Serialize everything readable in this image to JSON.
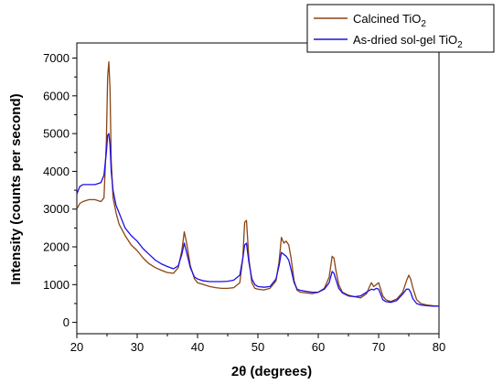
{
  "chart_data": {
    "type": "line",
    "xlabel": "2θ (degrees)",
    "ylabel": "Intensity (counts per second)",
    "xlim": [
      20,
      80
    ],
    "ylim": [
      -300,
      7400
    ],
    "xticks": [
      20,
      30,
      40,
      50,
      60,
      70,
      80
    ],
    "yticks": [
      0,
      1000,
      2000,
      3000,
      4000,
      5000,
      6000,
      7000
    ],
    "grid": false,
    "legend_position": "top-right",
    "series": [
      {
        "name": "Calcined TiO",
        "name_sub": "2",
        "color": "#8B4513",
        "x": [
          20,
          20.5,
          21,
          22,
          23,
          24,
          24.5,
          24.9,
          25.1,
          25.3,
          25.5,
          25.7,
          26,
          26.5,
          27,
          28,
          29,
          30,
          31,
          32,
          33,
          34,
          35,
          36,
          36.8,
          37.4,
          37.8,
          38.2,
          38.8,
          39.5,
          40,
          41,
          42,
          43,
          44,
          45,
          46,
          47,
          47.5,
          47.8,
          48.1,
          48.5,
          49,
          49.5,
          50,
          51,
          52,
          53,
          53.5,
          53.9,
          54.3,
          54.7,
          55.1,
          55.5,
          56,
          56.5,
          57,
          58,
          59,
          60,
          61,
          61.8,
          62.3,
          62.6,
          62.9,
          63.4,
          64,
          65,
          66,
          67,
          68,
          68.5,
          68.8,
          69.2,
          69.6,
          70,
          70.3,
          70.7,
          71.2,
          72,
          73,
          74,
          74.6,
          75,
          75.3,
          75.7,
          76.3,
          77,
          78,
          79,
          80
        ],
        "y": [
          3000,
          3150,
          3200,
          3250,
          3250,
          3200,
          3300,
          4800,
          6500,
          6900,
          6200,
          4300,
          3300,
          2900,
          2600,
          2300,
          2050,
          1900,
          1700,
          1550,
          1450,
          1380,
          1320,
          1300,
          1450,
          1900,
          2400,
          2100,
          1500,
          1150,
          1050,
          1000,
          950,
          920,
          900,
          900,
          920,
          1050,
          1700,
          2650,
          2700,
          1700,
          1050,
          900,
          880,
          860,
          900,
          1100,
          1600,
          2250,
          2100,
          2150,
          2050,
          1700,
          1100,
          850,
          800,
          780,
          760,
          800,
          900,
          1200,
          1750,
          1700,
          1400,
          1000,
          800,
          720,
          680,
          650,
          760,
          950,
          1050,
          950,
          1000,
          1050,
          900,
          700,
          600,
          550,
          620,
          800,
          1100,
          1250,
          1150,
          900,
          600,
          500,
          460,
          440,
          430
        ]
      },
      {
        "name": "As-dried sol-gel TiO",
        "name_sub": "2",
        "color": "#1E10E6",
        "x": [
          20,
          20.5,
          21,
          22,
          23,
          24,
          24.5,
          24.9,
          25.1,
          25.3,
          25.5,
          25.7,
          26,
          26.5,
          27,
          28,
          29,
          30,
          31,
          32,
          33,
          34,
          35,
          36,
          36.8,
          37.4,
          37.8,
          38.2,
          38.8,
          39.5,
          40,
          41,
          42,
          43,
          44,
          45,
          46,
          47,
          47.5,
          47.8,
          48.1,
          48.5,
          49,
          49.5,
          50,
          51,
          52,
          53,
          53.5,
          53.9,
          54.3,
          54.7,
          55.1,
          55.5,
          56,
          56.5,
          57,
          58,
          59,
          60,
          61,
          61.8,
          62.3,
          62.6,
          62.9,
          63.4,
          64,
          65,
          66,
          67,
          68,
          68.5,
          68.8,
          69.2,
          69.6,
          70,
          70.3,
          70.7,
          71.2,
          72,
          73,
          74,
          74.6,
          75,
          75.3,
          75.7,
          76.3,
          77,
          78,
          79,
          80
        ],
        "y": [
          3400,
          3600,
          3650,
          3650,
          3650,
          3700,
          3900,
          4500,
          4950,
          5000,
          4700,
          4000,
          3500,
          3100,
          2900,
          2500,
          2300,
          2150,
          1950,
          1800,
          1650,
          1550,
          1480,
          1420,
          1500,
          1800,
          2100,
          1850,
          1450,
          1200,
          1150,
          1100,
          1080,
          1080,
          1080,
          1090,
          1120,
          1250,
          1700,
          2050,
          2100,
          1600,
          1150,
          1000,
          950,
          930,
          950,
          1150,
          1500,
          1850,
          1800,
          1750,
          1650,
          1400,
          1050,
          880,
          850,
          820,
          800,
          800,
          880,
          1050,
          1350,
          1300,
          1150,
          900,
          780,
          700,
          680,
          700,
          800,
          850,
          880,
          860,
          900,
          880,
          760,
          600,
          550,
          530,
          580,
          750,
          880,
          880,
          800,
          620,
          500,
          460,
          440,
          430,
          430
        ]
      }
    ]
  }
}
